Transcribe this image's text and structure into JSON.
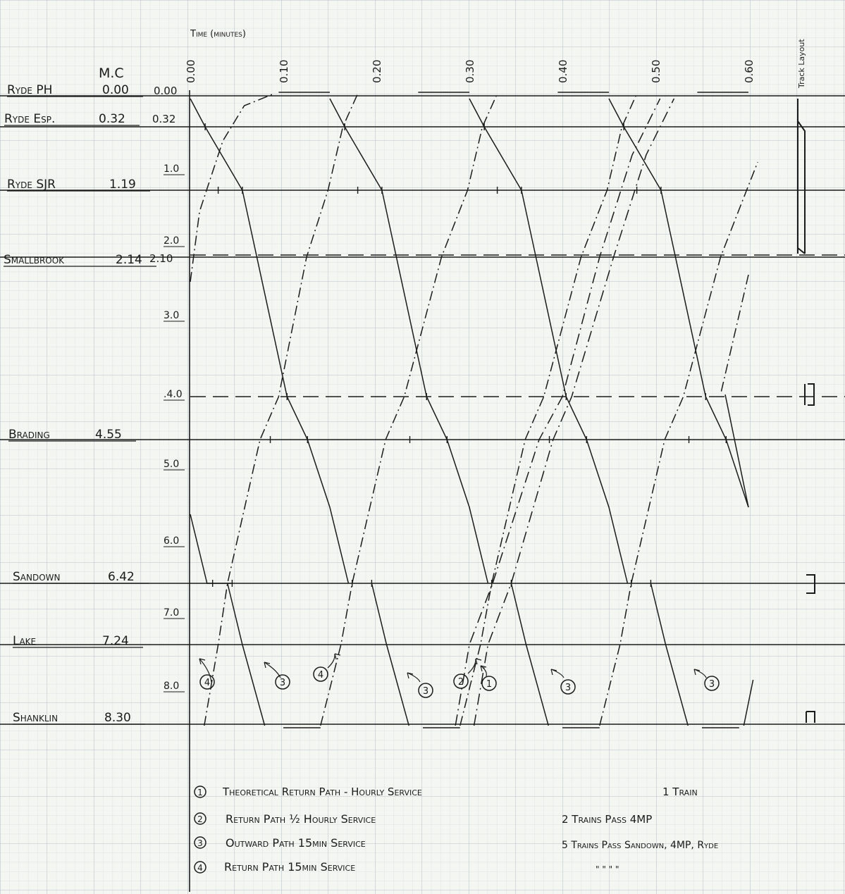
{
  "header": {
    "time_label": "Time (minutes)",
    "mc_label": "M.C",
    "track_layout_label": "Track Layout"
  },
  "time_ticks": [
    "0.00",
    "0.10",
    "0.20",
    "0.30",
    "0.40",
    "0.50",
    "0.60"
  ],
  "mileage_ticks": [
    "1.0",
    "2.0",
    "3.0",
    ".4.0",
    "5.0",
    "6.0",
    "7.0",
    "8.0"
  ],
  "stations": [
    {
      "name": "Ryde PH",
      "mc": "0.00",
      "offset": "0.00"
    },
    {
      "name": "Ryde Esp.",
      "mc": "0.32",
      "offset": "0.32"
    },
    {
      "name": "Ryde SJR",
      "mc": "1.19",
      "offset": ""
    },
    {
      "name": "Smallbrook",
      "mc": "2.14",
      "offset": "2.10"
    },
    {
      "name": "Brading",
      "mc": "4.55",
      "offset": ""
    },
    {
      "name": "Sandown",
      "mc": "6.42",
      "offset": ""
    },
    {
      "name": "Lake",
      "mc": "7.24",
      "offset": ""
    },
    {
      "name": "Shanklin",
      "mc": "8.30",
      "offset": ""
    }
  ],
  "path_markers": [
    "4",
    "3",
    "4",
    "3",
    "2",
    "1",
    "3",
    "3"
  ],
  "legend": [
    {
      "num": "1",
      "text": "Theoretical Return Path - Hourly Service",
      "note": "1 Train"
    },
    {
      "num": "2",
      "text": "Return Path ½ Hourly Service",
      "note": "2 Trains   Pass 4MP"
    },
    {
      "num": "3",
      "text": "Outward Path 15min Service",
      "note": "5 Trains  Pass Sandown, 4MP, Ryde"
    },
    {
      "num": "4",
      "text": "Return Path 15min Service",
      "note": "\"        \"        \"        \""
    }
  ],
  "colors": {
    "paper": "#f4f6f1",
    "grid_fine": "#cfd6dd",
    "grid_major": "#b9c2cb",
    "ink": "#1b1b1b"
  }
}
